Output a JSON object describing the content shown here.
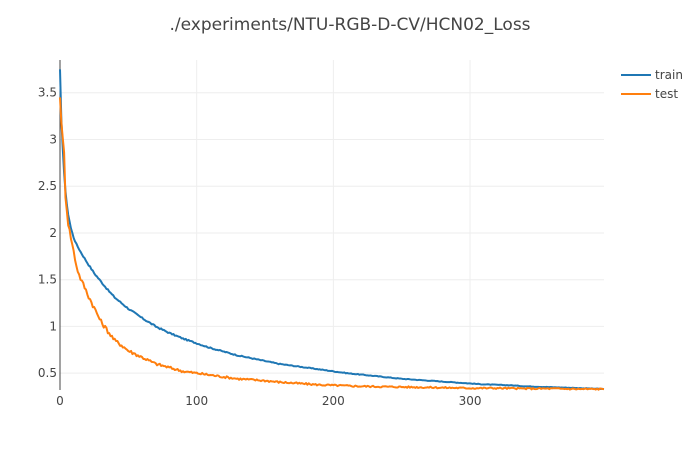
{
  "chart_data": {
    "type": "line",
    "title": "./experiments/NTU-RGB-D-CV/HCN02_Loss",
    "xlabel": "",
    "ylabel": "",
    "xlim": [
      0,
      398
    ],
    "ylim": [
      0.32,
      3.85
    ],
    "x_ticks": [
      0,
      100,
      200,
      300
    ],
    "y_ticks": [
      0.5,
      1,
      1.5,
      2,
      2.5,
      3,
      3.5
    ],
    "x_tick_labels": [
      "0",
      "100",
      "200",
      "300"
    ],
    "y_tick_labels": [
      "0.5",
      "1",
      "1.5",
      "2",
      "2.5",
      "3",
      "3.5"
    ],
    "grid": true,
    "legend_position": "top-right",
    "series": [
      {
        "name": "train",
        "color": "#1f77b4",
        "x": [
          0,
          1,
          2,
          3,
          4,
          5,
          6,
          8,
          10,
          12,
          15,
          20,
          25,
          30,
          35,
          40,
          45,
          50,
          60,
          70,
          80,
          90,
          100,
          110,
          120,
          130,
          140,
          150,
          160,
          170,
          180,
          190,
          200,
          210,
          220,
          230,
          240,
          250,
          260,
          270,
          280,
          290,
          300,
          310,
          320,
          330,
          340,
          350,
          360,
          370,
          380,
          390,
          398
        ],
        "y": [
          3.75,
          3.2,
          2.9,
          2.65,
          2.45,
          2.3,
          2.2,
          2.05,
          1.95,
          1.88,
          1.8,
          1.68,
          1.57,
          1.48,
          1.39,
          1.31,
          1.25,
          1.19,
          1.09,
          1.0,
          0.93,
          0.87,
          0.82,
          0.77,
          0.73,
          0.69,
          0.66,
          0.63,
          0.6,
          0.58,
          0.56,
          0.54,
          0.52,
          0.5,
          0.485,
          0.47,
          0.455,
          0.44,
          0.43,
          0.42,
          0.41,
          0.4,
          0.39,
          0.38,
          0.375,
          0.37,
          0.36,
          0.355,
          0.35,
          0.345,
          0.34,
          0.335,
          0.33
        ]
      },
      {
        "name": "test",
        "color": "#ff7f0e",
        "x": [
          0,
          1,
          2,
          3,
          4,
          5,
          6,
          8,
          10,
          12,
          14,
          16,
          18,
          20,
          25,
          30,
          35,
          40,
          45,
          50,
          60,
          70,
          80,
          90,
          100,
          110,
          120,
          130,
          140,
          150,
          160,
          170,
          180,
          190,
          200,
          220,
          240,
          260,
          280,
          300,
          320,
          340,
          360,
          380,
          398
        ],
        "y": [
          3.45,
          3.2,
          3.0,
          2.85,
          2.4,
          2.25,
          2.1,
          1.95,
          1.8,
          1.65,
          1.55,
          1.48,
          1.42,
          1.35,
          1.2,
          1.05,
          0.95,
          0.85,
          0.8,
          0.74,
          0.67,
          0.6,
          0.56,
          0.52,
          0.5,
          0.48,
          0.46,
          0.44,
          0.43,
          0.42,
          0.405,
          0.395,
          0.385,
          0.375,
          0.37,
          0.36,
          0.355,
          0.35,
          0.345,
          0.34,
          0.34,
          0.335,
          0.335,
          0.33,
          0.33
        ]
      }
    ]
  }
}
